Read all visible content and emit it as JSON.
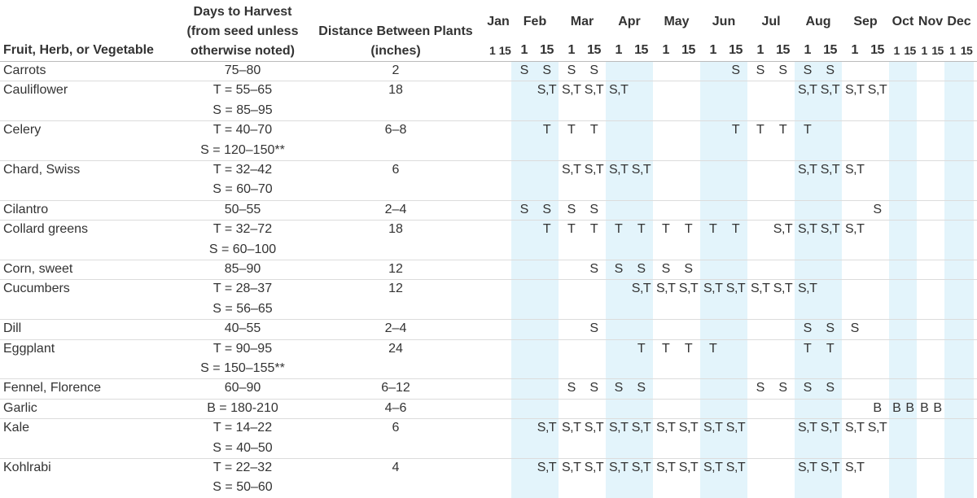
{
  "header": {
    "name": "Fruit, Herb, or Vegetable",
    "days": [
      "Days to Harvest",
      "(from seed unless",
      "otherwise noted)"
    ],
    "distance": [
      "Distance Between Plants",
      "(inches)"
    ],
    "months": [
      "Jan",
      "Feb",
      "Mar",
      "Apr",
      "May",
      "Jun",
      "Jul",
      "Aug",
      "Sep",
      "Oct",
      "Nov",
      "Dec"
    ],
    "halves": [
      "1",
      "15"
    ]
  },
  "rows": [
    {
      "name": "Carrots",
      "days": [
        "75–80"
      ],
      "distance": "2",
      "schedule": [
        null,
        null,
        "S",
        "S",
        "S",
        "S",
        null,
        null,
        null,
        null,
        null,
        "S",
        "S",
        "S",
        "S",
        "S",
        null,
        null,
        null,
        null,
        null,
        null,
        null,
        null
      ]
    },
    {
      "name": "Cauliflower",
      "days": [
        "T = 55–65",
        "S = 85–95"
      ],
      "distance": "18",
      "schedule": [
        null,
        null,
        null,
        "S,T",
        "S,T",
        "S,T",
        "S,T",
        null,
        null,
        null,
        null,
        null,
        null,
        null,
        "S,T",
        "S,T",
        "S,T",
        "S,T",
        null,
        null,
        null,
        null,
        null,
        null
      ]
    },
    {
      "name": "Celery",
      "days": [
        "T = 40–70",
        "S = 120–150**"
      ],
      "distance": "6–8",
      "schedule": [
        null,
        null,
        null,
        "T",
        "T",
        "T",
        null,
        null,
        null,
        null,
        null,
        "T",
        "T",
        "T",
        "T",
        null,
        null,
        null,
        null,
        null,
        null,
        null,
        null,
        null
      ]
    },
    {
      "name": "Chard, Swiss",
      "days": [
        "T = 32–42",
        "S = 60–70"
      ],
      "distance": "6",
      "schedule": [
        null,
        null,
        null,
        null,
        "S,T",
        "S,T",
        "S,T",
        "S,T",
        null,
        null,
        null,
        null,
        null,
        null,
        "S,T",
        "S,T",
        "S,T",
        null,
        null,
        null,
        null,
        null,
        null,
        null
      ]
    },
    {
      "name": "Cilantro",
      "days": [
        "50–55"
      ],
      "distance": "2–4",
      "schedule": [
        null,
        null,
        "S",
        "S",
        "S",
        "S",
        null,
        null,
        null,
        null,
        null,
        null,
        null,
        null,
        null,
        null,
        null,
        "S",
        null,
        null,
        null,
        null,
        null,
        null
      ]
    },
    {
      "name": "Collard greens",
      "days": [
        "T = 32–72",
        "S = 60–100"
      ],
      "distance": "18",
      "schedule": [
        null,
        null,
        null,
        "T",
        "T",
        "T",
        "T",
        "T",
        "T",
        "T",
        "T",
        "T",
        null,
        "S,T",
        "S,T",
        "S,T",
        "S,T",
        null,
        null,
        null,
        null,
        null,
        null,
        null
      ]
    },
    {
      "name": "Corn, sweet",
      "days": [
        "85–90"
      ],
      "distance": "12",
      "schedule": [
        null,
        null,
        null,
        null,
        null,
        "S",
        "S",
        "S",
        "S",
        "S",
        null,
        null,
        null,
        null,
        null,
        null,
        null,
        null,
        null,
        null,
        null,
        null,
        null,
        null
      ]
    },
    {
      "name": "Cucumbers",
      "days": [
        "T = 28–37",
        "S = 56–65"
      ],
      "distance": "12",
      "schedule": [
        null,
        null,
        null,
        null,
        null,
        null,
        null,
        "S,T",
        "S,T",
        "S,T",
        "S,T",
        "S,T",
        "S,T",
        "S,T",
        "S,T",
        null,
        null,
        null,
        null,
        null,
        null,
        null,
        null,
        null
      ]
    },
    {
      "name": "Dill",
      "days": [
        "40–55"
      ],
      "distance": "2–4",
      "schedule": [
        null,
        null,
        null,
        null,
        null,
        "S",
        null,
        null,
        null,
        null,
        null,
        null,
        null,
        null,
        "S",
        "S",
        "S",
        null,
        null,
        null,
        null,
        null,
        null,
        null
      ]
    },
    {
      "name": "Eggplant",
      "days": [
        "T = 90–95",
        "S = 150–155**"
      ],
      "distance": "24",
      "schedule": [
        null,
        null,
        null,
        null,
        null,
        null,
        null,
        "T",
        "T",
        "T",
        "T",
        null,
        null,
        null,
        "T",
        "T",
        null,
        null,
        null,
        null,
        null,
        null,
        null,
        null
      ]
    },
    {
      "name": "Fennel, Florence",
      "days": [
        "60–90"
      ],
      "distance": "6–12",
      "schedule": [
        null,
        null,
        null,
        null,
        "S",
        "S",
        "S",
        "S",
        null,
        null,
        null,
        null,
        "S",
        "S",
        "S",
        "S",
        null,
        null,
        null,
        null,
        null,
        null,
        null,
        null
      ]
    },
    {
      "name": "Garlic",
      "days": [
        "B = 180-210"
      ],
      "distance": "4–6",
      "schedule": [
        null,
        null,
        null,
        null,
        null,
        null,
        null,
        null,
        null,
        null,
        null,
        null,
        null,
        null,
        null,
        null,
        null,
        "B",
        "B",
        "B",
        "B",
        "B",
        null,
        null
      ]
    },
    {
      "name": "Kale",
      "days": [
        "T = 14–22",
        "S = 40–50"
      ],
      "distance": "6",
      "schedule": [
        null,
        null,
        null,
        "S,T",
        "S,T",
        "S,T",
        "S,T",
        "S,T",
        "S,T",
        "S,T",
        "S,T",
        "S,T",
        null,
        null,
        "S,T",
        "S,T",
        "S,T",
        "S,T",
        null,
        null,
        null,
        null,
        null,
        null
      ]
    },
    {
      "name": "Kohlrabi",
      "days": [
        "T = 22–32",
        "S = 50–60"
      ],
      "distance": "4",
      "schedule": [
        null,
        null,
        null,
        "S,T",
        "S,T",
        "S,T",
        "S,T",
        "S,T",
        "S,T",
        "S,T",
        "S,T",
        "S,T",
        null,
        null,
        "S,T",
        "S,T",
        "S,T",
        null,
        null,
        null,
        null,
        null,
        null,
        null
      ]
    }
  ]
}
